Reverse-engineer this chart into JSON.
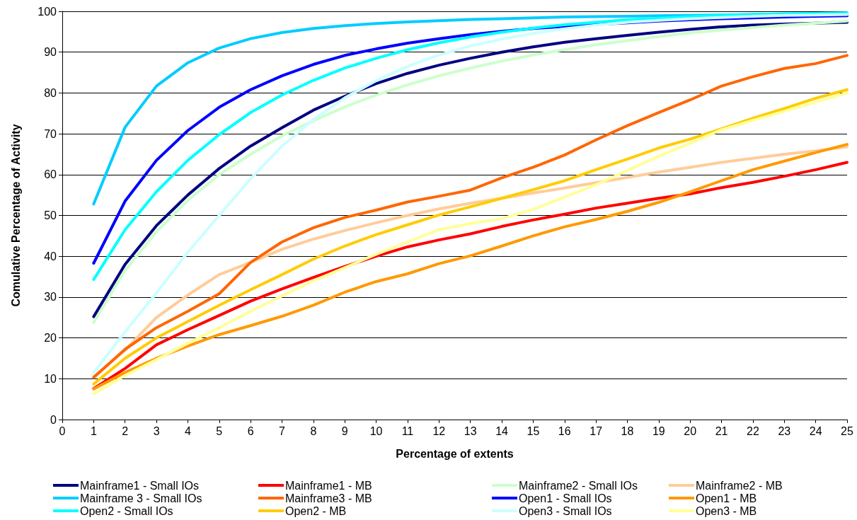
{
  "chart_data": {
    "type": "line",
    "xlabel": "Percentage of extents",
    "ylabel": "Comulative Percentage of Activity",
    "x": [
      1,
      2,
      3,
      4,
      5,
      6,
      7,
      8,
      9,
      10,
      11,
      12,
      13,
      14,
      15,
      16,
      17,
      18,
      19,
      20,
      21,
      22,
      23,
      24,
      25
    ],
    "xlim": [
      0,
      25
    ],
    "xticks": [
      0,
      1,
      2,
      3,
      4,
      5,
      6,
      7,
      8,
      9,
      10,
      11,
      12,
      13,
      14,
      15,
      16,
      17,
      18,
      19,
      20,
      21,
      22,
      23,
      24,
      25
    ],
    "ylim": [
      0,
      100
    ],
    "yticks": [
      0,
      10,
      20,
      30,
      40,
      50,
      60,
      70,
      80,
      90,
      100
    ],
    "grid": "y",
    "legend": "bottom",
    "marker": "none",
    "line_style": "solid",
    "series": [
      {
        "name": "Mainframe1 - Small IOs",
        "color": "#000080",
        "values": [
          25.2,
          38,
          47.5,
          55,
          61.5,
          67,
          71.5,
          75.8,
          79.2,
          82.3,
          84.8,
          86.8,
          88.5,
          90,
          91.3,
          92.4,
          93.3,
          94.1,
          94.9,
          95.6,
          96.2,
          96.6,
          96.9,
          97.1,
          97.3
        ]
      },
      {
        "name": "Mainframe1 - MB",
        "color": "#ff0000",
        "values": [
          7.6,
          12.5,
          18.3,
          22,
          25.5,
          29,
          32,
          34.8,
          37.5,
          40,
          42.3,
          44,
          45.5,
          47.3,
          48.9,
          50.3,
          51.8,
          53,
          54.2,
          55.3,
          56.8,
          58.1,
          59.6,
          61.2,
          63
        ]
      },
      {
        "name": "Mainframe2 - Small IOs",
        "color": "#ccffcc",
        "values": [
          23.8,
          36.5,
          46,
          53.7,
          60,
          65,
          69.5,
          73.2,
          76.6,
          79.5,
          82,
          84.2,
          86.1,
          87.8,
          89.3,
          90.6,
          91.8,
          92.8,
          93.8,
          94.7,
          95.4,
          96,
          96.6,
          97.1,
          97.6
        ]
      },
      {
        "name": "Mainframe2 - MB",
        "color": "#ffcc99",
        "values": [
          10.5,
          17,
          25,
          30.5,
          35.5,
          38.5,
          41.7,
          44.2,
          46.3,
          48.2,
          50,
          51.6,
          53,
          54.2,
          55.5,
          56.7,
          58,
          59.3,
          60.6,
          61.8,
          63,
          64,
          65,
          65.8,
          66.8
        ]
      },
      {
        "name": "Mainframe 3 - Small IOs",
        "color": "#00ccff",
        "values": [
          52.8,
          71.6,
          81.7,
          87.4,
          91,
          93.3,
          94.8,
          95.8,
          96.5,
          97,
          97.4,
          97.7,
          98,
          98.2,
          98.4,
          98.6,
          98.7,
          98.8,
          98.9,
          99,
          99.1,
          99.2,
          99.3,
          99.3,
          99.4
        ]
      },
      {
        "name": "Mainframe3 - MB",
        "color": "#ff6600",
        "values": [
          10.3,
          17.2,
          22.5,
          26.5,
          30.8,
          38.5,
          43.5,
          47,
          49.5,
          51.3,
          53.3,
          54.7,
          56.2,
          59.2,
          61.8,
          64.8,
          68.5,
          72,
          75.2,
          78.3,
          81.7,
          84,
          86,
          87.2,
          89.2
        ]
      },
      {
        "name": "Open1 - Small IOs",
        "color": "#0000ff",
        "values": [
          38.3,
          53.5,
          63.5,
          70.8,
          76.5,
          80.8,
          84.2,
          87,
          89.2,
          90.8,
          92.2,
          93.3,
          94.3,
          95.1,
          95.8,
          96.3,
          96.8,
          97.2,
          97.6,
          97.9,
          98.2,
          98.4,
          98.6,
          98.8,
          98.9
        ]
      },
      {
        "name": "Open1 - MB",
        "color": "#ff9900",
        "values": [
          7.5,
          11.5,
          15,
          18,
          20.8,
          23,
          25.3,
          28,
          31.2,
          33.8,
          35.7,
          38.2,
          40.1,
          42.5,
          45,
          47.2,
          49,
          51,
          53.2,
          55.8,
          58.5,
          61.2,
          63.3,
          65.4,
          67.4
        ]
      },
      {
        "name": "Open2 - Small IOs",
        "color": "#00ffff",
        "values": [
          34.3,
          46.5,
          55.8,
          63.5,
          69.8,
          75.2,
          79.5,
          83.1,
          86.1,
          88.5,
          90.6,
          92.3,
          93.7,
          94.9,
          95.9,
          96.7,
          97.3,
          97.9,
          98.3,
          98.7,
          99,
          99.2,
          99.4,
          99.5,
          99.6
        ]
      },
      {
        "name": "Open2 - MB",
        "color": "#ffcc00",
        "values": [
          8.7,
          15,
          20,
          24,
          28,
          31.8,
          35.5,
          39.3,
          42.5,
          45.3,
          47.7,
          50.1,
          52.1,
          54.2,
          56.3,
          58.5,
          61.2,
          63.8,
          66.5,
          68.7,
          71.2,
          73.8,
          76.2,
          78.7,
          80.8
        ]
      },
      {
        "name": "Open3 - Small IOs",
        "color": "#ccffff",
        "values": [
          11.5,
          21.5,
          31,
          41,
          50,
          59,
          67,
          73.5,
          78.8,
          83,
          86.5,
          89.3,
          91.5,
          93.2,
          94.6,
          95.7,
          96.6,
          97.3,
          97.8,
          98.2,
          98.5,
          98.8,
          99,
          99.1,
          99.2
        ]
      },
      {
        "name": "Open3 - MB",
        "color": "#ffff99",
        "values": [
          6.3,
          10.8,
          14.7,
          18.7,
          22.5,
          26.5,
          30.3,
          34,
          37.2,
          40.5,
          43.5,
          46.5,
          48,
          49.2,
          51.5,
          54.5,
          57.5,
          61,
          64.5,
          67.7,
          71,
          73.3,
          75.5,
          77.8,
          80
        ]
      }
    ]
  }
}
